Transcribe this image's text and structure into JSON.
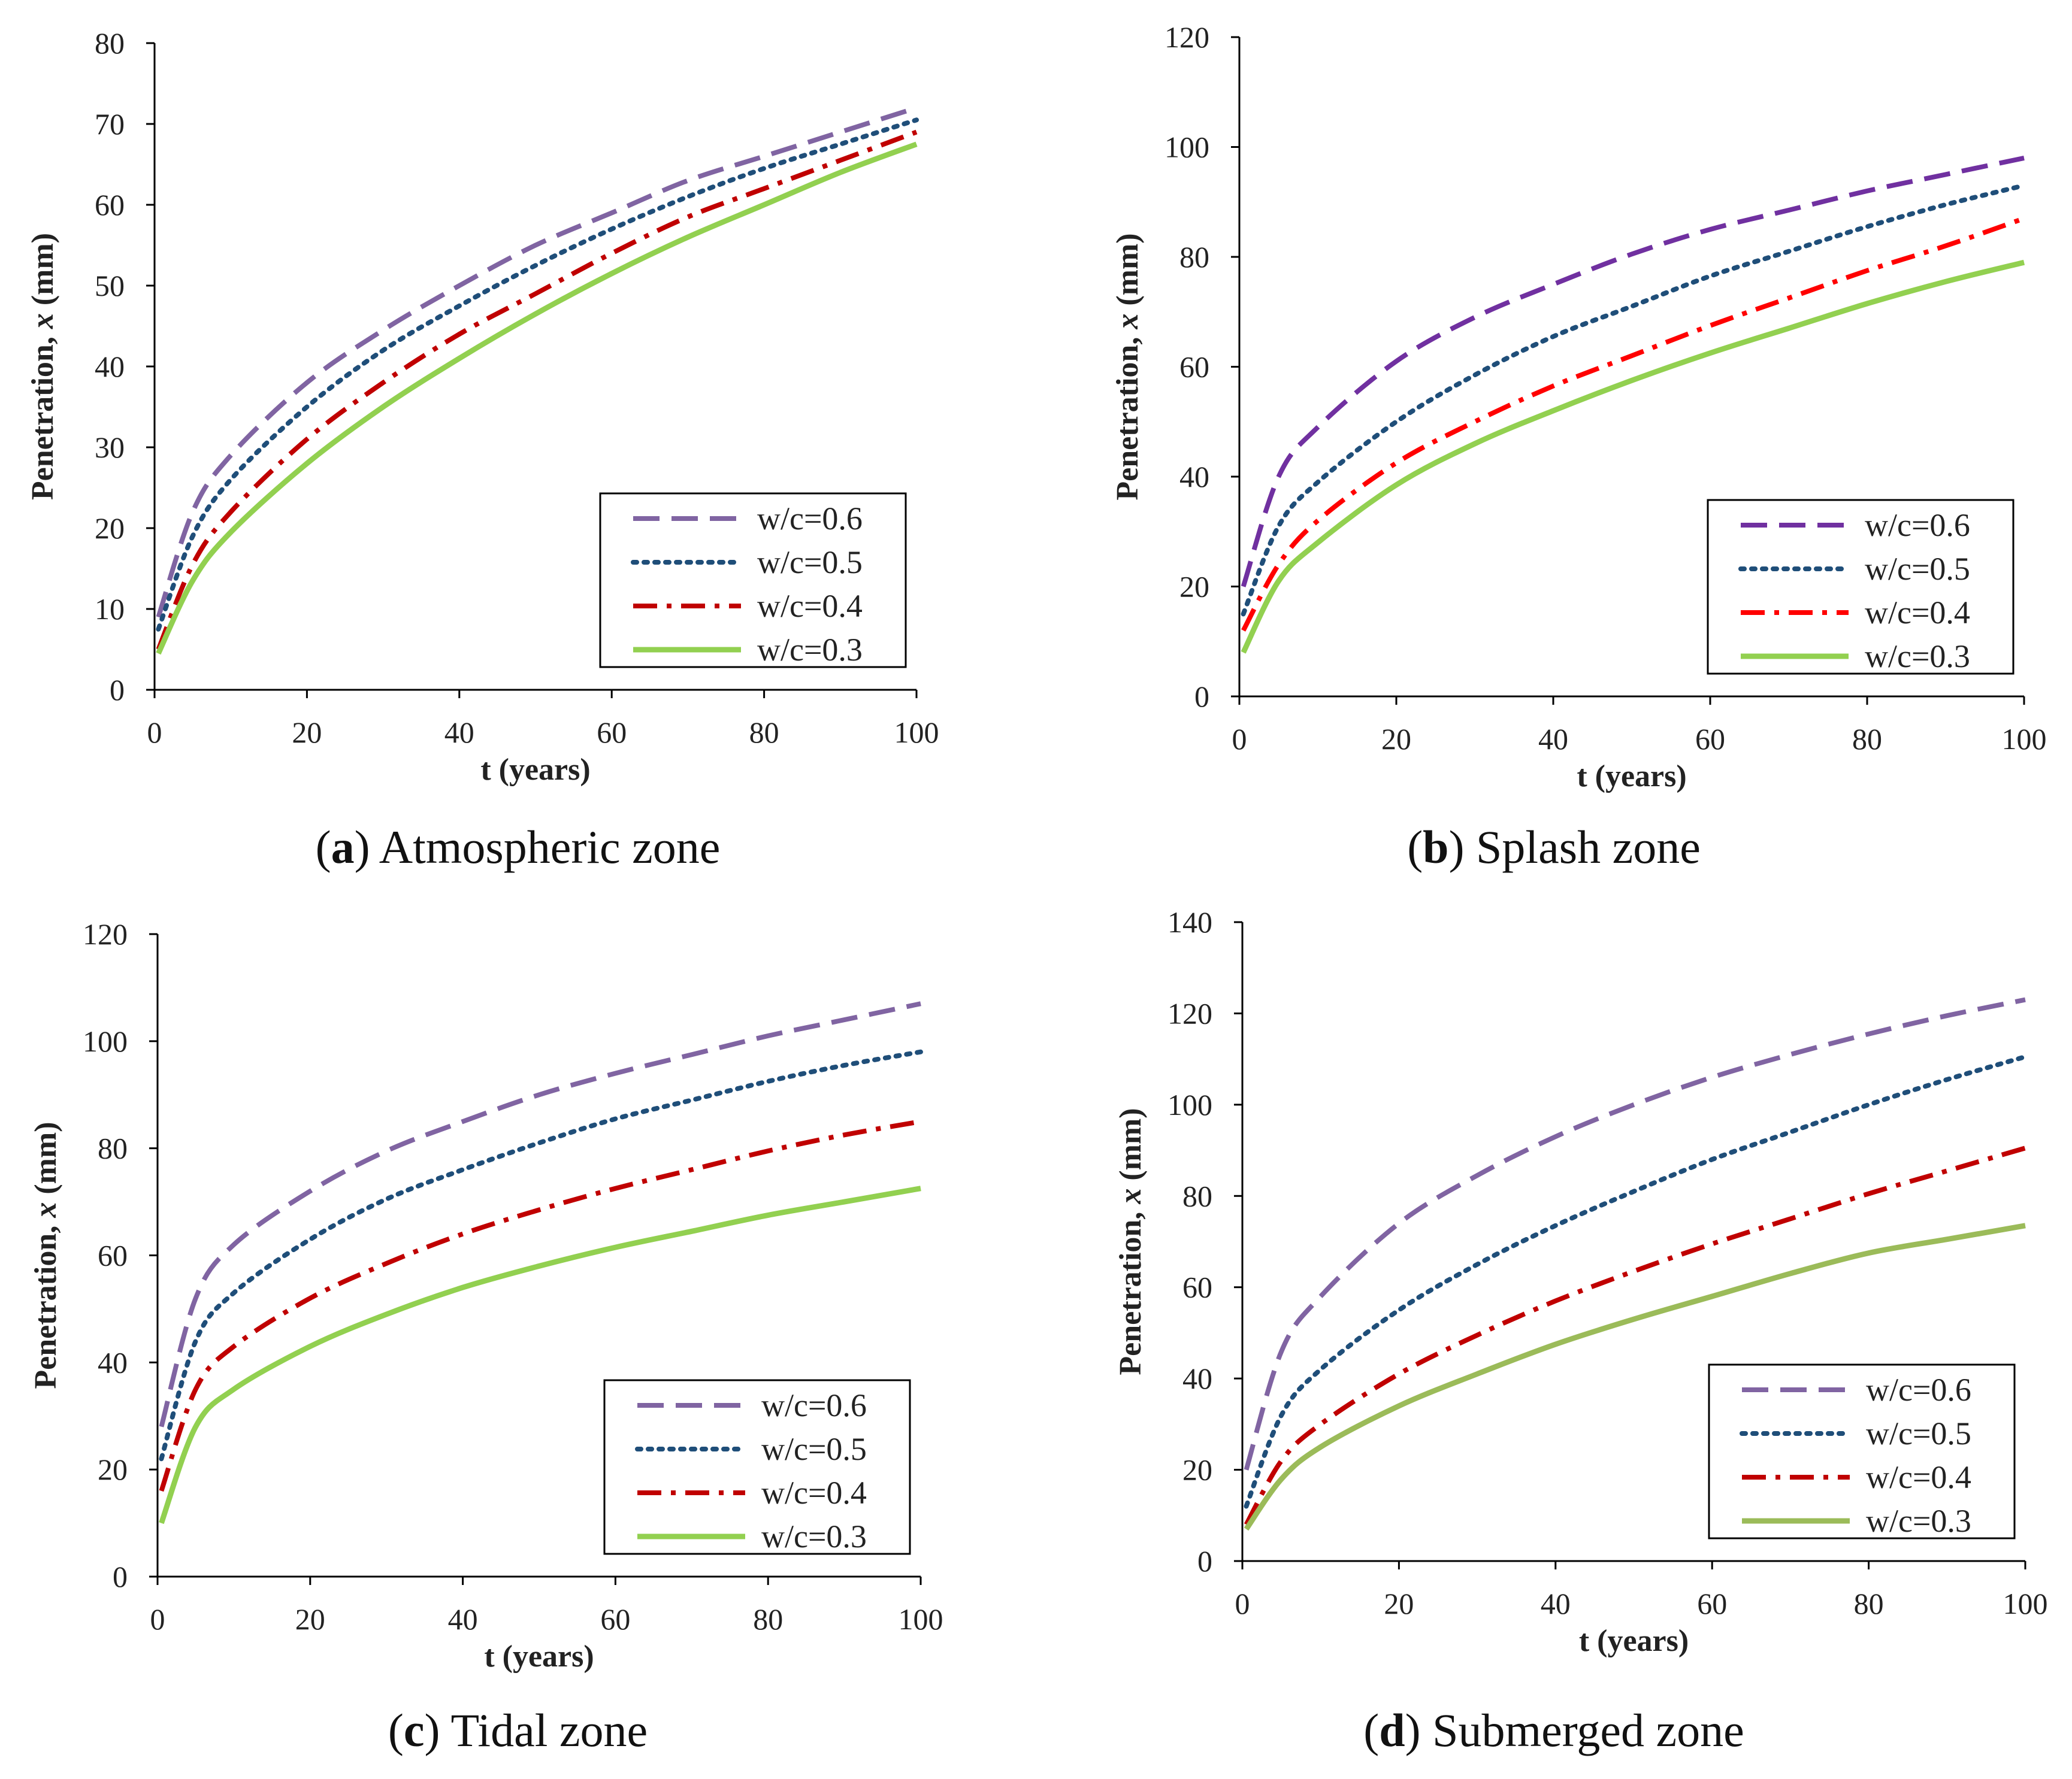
{
  "chart_data": [
    {
      "type": "line",
      "panel_letter": "a",
      "caption": "Atmospheric zone",
      "xlabel": "t (years)",
      "ylabel_prefix": "Penetration, ",
      "ylabel_var": "x",
      "ylabel_suffix": " (mm)",
      "xlim": [
        0,
        100
      ],
      "ylim": [
        0,
        80
      ],
      "xticks": [
        0,
        20,
        40,
        60,
        80,
        100
      ],
      "yticks": [
        0,
        10,
        20,
        30,
        40,
        50,
        60,
        70,
        80
      ],
      "legend_position": "bottom-right",
      "grid": false,
      "series": [
        {
          "name": "w/c=0.6",
          "color": "#8064A2",
          "style": "dashed",
          "values": [
            [
              0.5,
              9
            ],
            [
              5,
              22
            ],
            [
              10,
              29
            ],
            [
              20,
              38
            ],
            [
              30,
              44.5
            ],
            [
              40,
              50
            ],
            [
              50,
              55
            ],
            [
              60,
              59
            ],
            [
              70,
              63
            ],
            [
              80,
              66
            ],
            [
              90,
              69
            ],
            [
              100,
              72
            ]
          ]
        },
        {
          "name": "w/c=0.5",
          "color": "#1F4E79",
          "style": "dotted",
          "values": [
            [
              0.5,
              7.5
            ],
            [
              5,
              19
            ],
            [
              10,
              26
            ],
            [
              20,
              35
            ],
            [
              30,
              42
            ],
            [
              40,
              47.5
            ],
            [
              50,
              52.5
            ],
            [
              60,
              57
            ],
            [
              70,
              61
            ],
            [
              80,
              64.5
            ],
            [
              90,
              67.5
            ],
            [
              100,
              70.5
            ]
          ]
        },
        {
          "name": "w/c=0.4",
          "color": "#C00000",
          "style": "dashdot",
          "values": [
            [
              0.5,
              5
            ],
            [
              5,
              15.5
            ],
            [
              10,
              22
            ],
            [
              20,
              31
            ],
            [
              30,
              38
            ],
            [
              40,
              44
            ],
            [
              50,
              49
            ],
            [
              60,
              54
            ],
            [
              70,
              58.5
            ],
            [
              80,
              62
            ],
            [
              90,
              65.5
            ],
            [
              100,
              69
            ]
          ]
        },
        {
          "name": "w/c=0.3",
          "color": "#92D050",
          "style": "solid",
          "values": [
            [
              0.5,
              4.5
            ],
            [
              5,
              13.5
            ],
            [
              10,
              19.5
            ],
            [
              20,
              28
            ],
            [
              30,
              35
            ],
            [
              40,
              41
            ],
            [
              50,
              46.5
            ],
            [
              60,
              51.5
            ],
            [
              70,
              56
            ],
            [
              80,
              60
            ],
            [
              90,
              64
            ],
            [
              100,
              67.5
            ]
          ]
        }
      ]
    },
    {
      "type": "line",
      "panel_letter": "b",
      "caption": "Splash zone",
      "xlabel": "t (years)",
      "ylabel_prefix": "Penetration, ",
      "ylabel_var": "x",
      "ylabel_suffix": " (mm)",
      "xlim": [
        0,
        100
      ],
      "ylim": [
        0,
        120
      ],
      "xticks": [
        0,
        20,
        40,
        60,
        80,
        100
      ],
      "yticks": [
        0,
        20,
        40,
        60,
        80,
        100,
        120
      ],
      "legend_position": "bottom-right",
      "grid": false,
      "series": [
        {
          "name": "w/c=0.6",
          "color": "#7030A0",
          "style": "dashed",
          "values": [
            [
              0.5,
              20
            ],
            [
              5,
              40
            ],
            [
              10,
              49
            ],
            [
              20,
              61
            ],
            [
              30,
              69
            ],
            [
              40,
              75
            ],
            [
              50,
              80.5
            ],
            [
              60,
              85
            ],
            [
              70,
              88.5
            ],
            [
              80,
              92
            ],
            [
              90,
              95
            ],
            [
              100,
              98
            ]
          ]
        },
        {
          "name": "w/c=0.5",
          "color": "#1F4E79",
          "style": "dotted",
          "values": [
            [
              0.5,
              15
            ],
            [
              5,
              31
            ],
            [
              10,
              39
            ],
            [
              20,
              50
            ],
            [
              30,
              58.5
            ],
            [
              40,
              65.5
            ],
            [
              50,
              71
            ],
            [
              60,
              76.5
            ],
            [
              70,
              81
            ],
            [
              80,
              85.5
            ],
            [
              90,
              89.5
            ],
            [
              100,
              93
            ]
          ]
        },
        {
          "name": "w/c=0.4",
          "color": "#FF0000",
          "style": "dashdot",
          "values": [
            [
              0.5,
              12
            ],
            [
              5,
              24
            ],
            [
              10,
              32
            ],
            [
              20,
              42.5
            ],
            [
              30,
              50
            ],
            [
              40,
              56.5
            ],
            [
              50,
              62
            ],
            [
              60,
              67.5
            ],
            [
              70,
              72.5
            ],
            [
              80,
              77.5
            ],
            [
              90,
              82
            ],
            [
              100,
              87
            ]
          ]
        },
        {
          "name": "w/c=0.3",
          "color": "#92D050",
          "style": "solid",
          "values": [
            [
              0.5,
              8
            ],
            [
              5,
              21
            ],
            [
              10,
              28
            ],
            [
              20,
              38.5
            ],
            [
              30,
              46
            ],
            [
              40,
              52
            ],
            [
              50,
              57.5
            ],
            [
              60,
              62.5
            ],
            [
              70,
              67
            ],
            [
              80,
              71.5
            ],
            [
              90,
              75.5
            ],
            [
              100,
              79
            ]
          ]
        }
      ]
    },
    {
      "type": "line",
      "panel_letter": "c",
      "caption": "Tidal zone",
      "xlabel": "t (years)",
      "ylabel_prefix": "Penetration, ",
      "ylabel_var": "x",
      "ylabel_suffix": " (mm)",
      "xlim": [
        0,
        100
      ],
      "ylim": [
        0,
        120
      ],
      "xticks": [
        0,
        20,
        40,
        60,
        80,
        100
      ],
      "yticks": [
        0,
        20,
        40,
        60,
        80,
        100,
        120
      ],
      "legend_position": "bottom-right",
      "grid": false,
      "series": [
        {
          "name": "w/c=0.6",
          "color": "#8064A2",
          "style": "dashed",
          "values": [
            [
              0.5,
              28
            ],
            [
              5,
              52
            ],
            [
              10,
              62
            ],
            [
              20,
              72
            ],
            [
              30,
              79.5
            ],
            [
              40,
              85
            ],
            [
              50,
              90
            ],
            [
              60,
              94
            ],
            [
              70,
              97.5
            ],
            [
              80,
              101
            ],
            [
              90,
              104
            ],
            [
              100,
              107
            ]
          ]
        },
        {
          "name": "w/c=0.5",
          "color": "#1F4E79",
          "style": "dotted",
          "values": [
            [
              0.5,
              22
            ],
            [
              5,
              44
            ],
            [
              10,
              53
            ],
            [
              20,
              63
            ],
            [
              30,
              70.5
            ],
            [
              40,
              76
            ],
            [
              50,
              81
            ],
            [
              60,
              85.5
            ],
            [
              70,
              89
            ],
            [
              80,
              92.5
            ],
            [
              90,
              95.5
            ],
            [
              100,
              98
            ]
          ]
        },
        {
          "name": "w/c=0.4",
          "color": "#C00000",
          "style": "dashdot",
          "values": [
            [
              0.5,
              16
            ],
            [
              5,
              35
            ],
            [
              10,
              43
            ],
            [
              20,
              52
            ],
            [
              30,
              58.5
            ],
            [
              40,
              64
            ],
            [
              50,
              68.5
            ],
            [
              60,
              72.5
            ],
            [
              70,
              76
            ],
            [
              80,
              79.5
            ],
            [
              90,
              82.5
            ],
            [
              100,
              85
            ]
          ]
        },
        {
          "name": "w/c=0.3",
          "color": "#92D050",
          "style": "solid",
          "values": [
            [
              0.5,
              10
            ],
            [
              5,
              28
            ],
            [
              10,
              35
            ],
            [
              20,
              43
            ],
            [
              30,
              49
            ],
            [
              40,
              54
            ],
            [
              50,
              58
            ],
            [
              60,
              61.5
            ],
            [
              70,
              64.5
            ],
            [
              80,
              67.5
            ],
            [
              90,
              70
            ],
            [
              100,
              72.5
            ]
          ]
        }
      ]
    },
    {
      "type": "line",
      "panel_letter": "d",
      "caption": "Submerged zone",
      "xlabel": "t (years)",
      "ylabel_prefix": "Penetration, ",
      "ylabel_var": "x",
      "ylabel_suffix": " (mm)",
      "xlim": [
        0,
        100
      ],
      "ylim": [
        0,
        140
      ],
      "xticks": [
        0,
        20,
        40,
        60,
        80,
        100
      ],
      "yticks": [
        0,
        20,
        40,
        60,
        80,
        100,
        120,
        140
      ],
      "legend_position": "bottom-right",
      "grid": false,
      "series": [
        {
          "name": "w/c=0.6",
          "color": "#8064A2",
          "style": "dashed",
          "values": [
            [
              0.5,
              20
            ],
            [
              5,
              46
            ],
            [
              10,
              58
            ],
            [
              20,
              74
            ],
            [
              30,
              84.5
            ],
            [
              40,
              93
            ],
            [
              50,
              100
            ],
            [
              60,
              106
            ],
            [
              70,
              111
            ],
            [
              80,
              115.5
            ],
            [
              90,
              119.5
            ],
            [
              100,
              123
            ]
          ]
        },
        {
          "name": "w/c=0.5",
          "color": "#1F4E79",
          "style": "dotted",
          "values": [
            [
              0.5,
              12
            ],
            [
              5,
              32
            ],
            [
              10,
              42
            ],
            [
              20,
              55
            ],
            [
              30,
              65
            ],
            [
              40,
              73.5
            ],
            [
              50,
              81
            ],
            [
              60,
              88
            ],
            [
              70,
              94
            ],
            [
              80,
              100
            ],
            [
              90,
              105.5
            ],
            [
              100,
              110.5
            ]
          ]
        },
        {
          "name": "w/c=0.4",
          "color": "#C00000",
          "style": "dashdot",
          "values": [
            [
              0.5,
              8
            ],
            [
              5,
              22
            ],
            [
              10,
              30
            ],
            [
              20,
              41
            ],
            [
              30,
              49.5
            ],
            [
              40,
              57
            ],
            [
              50,
              63.5
            ],
            [
              60,
              69.5
            ],
            [
              70,
              75
            ],
            [
              80,
              80.5
            ],
            [
              90,
              85.5
            ],
            [
              100,
              90.5
            ]
          ]
        },
        {
          "name": "w/c=0.3",
          "color": "#9BBB59",
          "style": "solid",
          "values": [
            [
              0.5,
              7
            ],
            [
              5,
              18
            ],
            [
              10,
              25
            ],
            [
              20,
              34
            ],
            [
              30,
              41
            ],
            [
              40,
              47.5
            ],
            [
              50,
              53
            ],
            [
              60,
              58
            ],
            [
              70,
              63
            ],
            [
              80,
              67.5
            ],
            [
              90,
              70.5
            ],
            [
              100,
              73.5
            ]
          ]
        }
      ]
    }
  ]
}
